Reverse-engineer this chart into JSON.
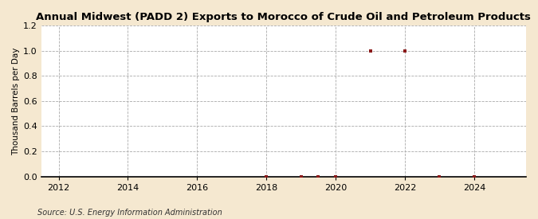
{
  "title": "Annual Midwest (PADD 2) Exports to Morocco of Crude Oil and Petroleum Products",
  "ylabel": "Thousand Barrels per Day",
  "source": "Source: U.S. Energy Information Administration",
  "background_color": "#f5e8d0",
  "plot_background_color": "#ffffff",
  "xmin": 2011.5,
  "xmax": 2025.5,
  "ymin": 0.0,
  "ymax": 1.2,
  "yticks": [
    0.0,
    0.2,
    0.4,
    0.6,
    0.8,
    1.0,
    1.2
  ],
  "xticks": [
    2012,
    2014,
    2016,
    2018,
    2020,
    2022,
    2024
  ],
  "data_x": [
    2018,
    2019,
    2019.5,
    2020,
    2021,
    2022,
    2023,
    2024
  ],
  "data_y": [
    0.0,
    0.0,
    0.0,
    0.0,
    1.0,
    1.0,
    0.0,
    0.0
  ],
  "marker_color": "#8b1a1a",
  "marker_size": 3.5,
  "grid_color": "#aaaaaa",
  "grid_style": "--",
  "axis_color": "#000000",
  "title_fontsize": 9.5,
  "label_fontsize": 7.5,
  "tick_fontsize": 8,
  "source_fontsize": 7
}
